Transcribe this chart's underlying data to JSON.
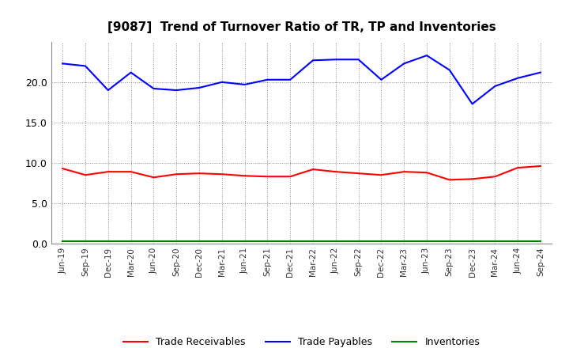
{
  "title": "[9087]  Trend of Turnover Ratio of TR, TP and Inventories",
  "x_labels": [
    "Jun-19",
    "Sep-19",
    "Dec-19",
    "Mar-20",
    "Jun-20",
    "Sep-20",
    "Dec-20",
    "Mar-21",
    "Jun-21",
    "Sep-21",
    "Dec-21",
    "Mar-22",
    "Jun-22",
    "Sep-22",
    "Dec-22",
    "Mar-23",
    "Jun-23",
    "Sep-23",
    "Dec-23",
    "Mar-24",
    "Jun-24",
    "Sep-24"
  ],
  "trade_receivables": [
    9.3,
    8.5,
    8.9,
    8.9,
    8.2,
    8.6,
    8.7,
    8.6,
    8.4,
    8.3,
    8.3,
    9.2,
    8.9,
    8.7,
    8.5,
    8.9,
    8.8,
    7.9,
    8.0,
    8.3,
    9.4,
    9.6
  ],
  "trade_payables": [
    22.3,
    22.0,
    19.0,
    21.2,
    19.2,
    19.0,
    19.3,
    20.0,
    19.7,
    20.3,
    20.3,
    22.7,
    22.8,
    22.8,
    20.3,
    22.3,
    23.3,
    21.5,
    17.3,
    19.5,
    20.5,
    21.2
  ],
  "inventories": [
    0.3,
    0.3,
    0.3,
    0.3,
    0.3,
    0.3,
    0.3,
    0.3,
    0.3,
    0.3,
    0.3,
    0.3,
    0.3,
    0.3,
    0.3,
    0.3,
    0.3,
    0.3,
    0.3,
    0.3,
    0.3,
    0.3
  ],
  "tr_color": "#ff0000",
  "tp_color": "#0000ff",
  "inv_color": "#008000",
  "background_color": "#ffffff",
  "ylim": [
    0.0,
    25.0
  ],
  "yticks": [
    0.0,
    5.0,
    10.0,
    15.0,
    20.0
  ],
  "grid_color": "#888888",
  "legend_labels": [
    "Trade Receivables",
    "Trade Payables",
    "Inventories"
  ]
}
